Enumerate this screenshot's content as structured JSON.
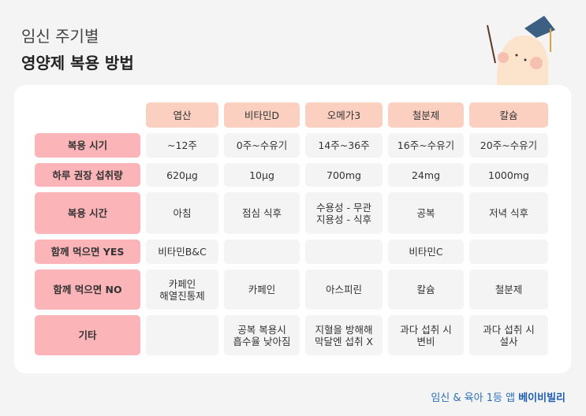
{
  "title": {
    "line1": "임신 주기별",
    "line2": "영양제 복용 방법"
  },
  "table": {
    "columns": [
      "엽산",
      "비타민D",
      "오메가3",
      "철분제",
      "칼슘"
    ],
    "rows": [
      {
        "label": "복용 시기",
        "cells": [
          "~12주",
          "0주~수유기",
          "14주~36주",
          "16주~수유기",
          "20주~수유기"
        ]
      },
      {
        "label": "하루 권장 섭취량",
        "cells": [
          "620μg",
          "10μg",
          "700mg",
          "24mg",
          "1000mg"
        ]
      },
      {
        "label": "복용 시간",
        "cells": [
          "아침",
          "점심 식후",
          "수용성 - 무관\n지용성 - 식후",
          "공복",
          "저녁 식후"
        ]
      },
      {
        "label": "함께 먹으면 YES",
        "cells": [
          "비타민B&C",
          "",
          "",
          "비타민C",
          ""
        ]
      },
      {
        "label": "함께 먹으면 NO",
        "cells": [
          "카페인\n해열진통제",
          "카페인",
          "아스피린",
          "칼슘",
          "철분제"
        ]
      },
      {
        "label": "기타",
        "cells": [
          "",
          "공복 복용시\n흡수율 낮아짐",
          "지혈을 방해해\n막달엔 섭취 X",
          "과다 섭취 시\n변비",
          "과다 섭취 시\n설사"
        ]
      }
    ]
  },
  "footer": {
    "text": "임신 & 육아 1등 앱 ",
    "brand": "베이비빌리"
  },
  "colors": {
    "header": "#fbd0c0",
    "label": "#fbb5b8",
    "brand": "#1f5fb0"
  }
}
